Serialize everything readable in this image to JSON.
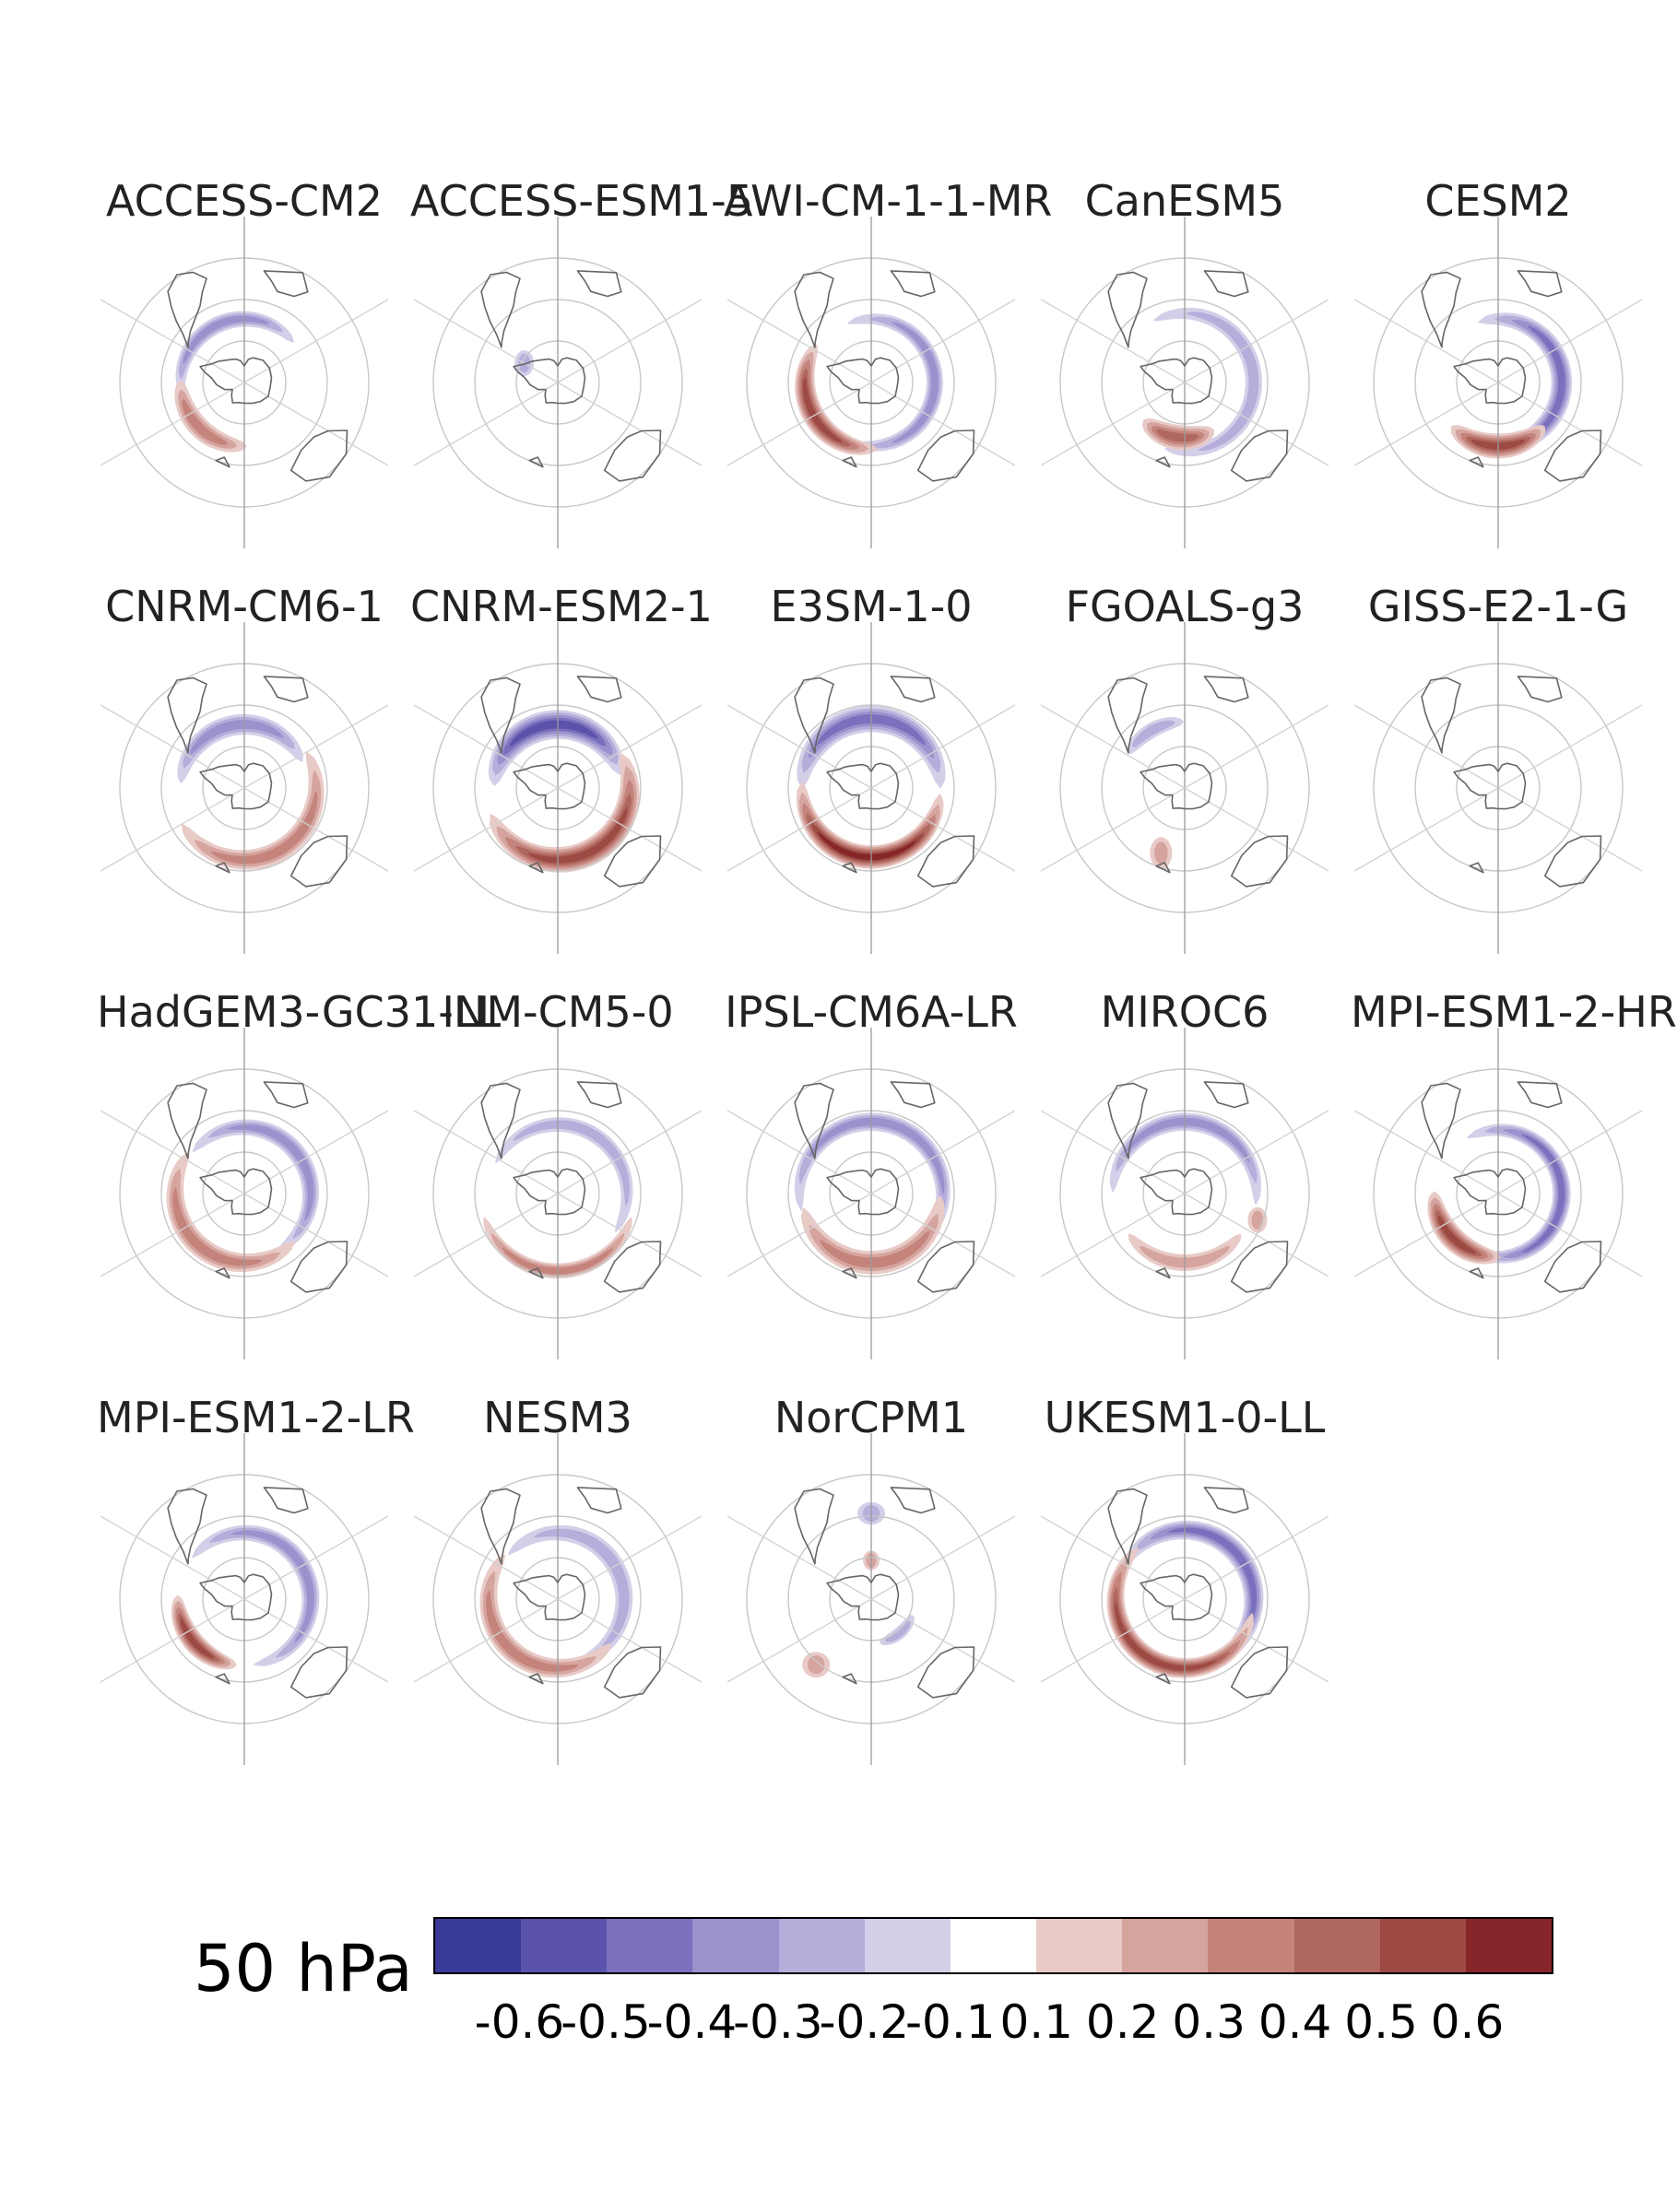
{
  "chart_data": {
    "type": "heatmap",
    "subtype": "south-polar-stereographic-map-panels",
    "level_label": "50 hPa",
    "colorbar": {
      "ticks": [
        "-0.6",
        "-0.5",
        "-0.4",
        "-0.3",
        "-0.2",
        "-0.1",
        "0.1",
        "0.2",
        "0.3",
        "0.4",
        "0.5",
        "0.6"
      ],
      "colors": [
        "#3a3a99",
        "#5b53ab",
        "#7a70bd",
        "#9a91cd",
        "#b6addb",
        "#d4cfe8",
        "#ffffff",
        "#e8cac6",
        "#d6a49e",
        "#c4847c",
        "#b0675f",
        "#9c4a43",
        "#87262a"
      ]
    },
    "panels": [
      {
        "title": "ACCESS-CM2",
        "blobs": [
          {
            "sign": -1,
            "amp": 0.3,
            "lon": 205,
            "rad": 0.46,
            "len": 0.42,
            "wid": 0.11,
            "curv": 0.95
          },
          {
            "sign": 1,
            "amp": 0.3,
            "lon": 315,
            "rad": 0.46,
            "len": 0.26,
            "wid": 0.14,
            "curv": 0.4
          }
        ]
      },
      {
        "title": "ACCESS-ESM1-5",
        "blobs": [
          {
            "sign": -1,
            "amp": 0.2,
            "lon": 240,
            "rad": 0.28,
            "len": 0.07,
            "wid": 0.06,
            "curv": 0
          }
        ]
      },
      {
        "title": "AWI-CM-1-1-MR",
        "blobs": [
          {
            "sign": -1,
            "amp": 0.3,
            "lon": 90,
            "rad": 0.46,
            "len": 0.62,
            "wid": 0.11,
            "curv": 0.9
          },
          {
            "sign": 1,
            "amp": 0.5,
            "lon": 300,
            "rad": 0.48,
            "len": 0.36,
            "wid": 0.15,
            "curv": 0.45
          }
        ]
      },
      {
        "title": "CanESM5",
        "blobs": [
          {
            "sign": -1,
            "amp": 0.2,
            "lon": 95,
            "rad": 0.5,
            "len": 0.62,
            "wid": 0.11,
            "curv": 0.9
          },
          {
            "sign": 1,
            "amp": 0.4,
            "lon": 352,
            "rad": 0.4,
            "len": 0.22,
            "wid": 0.17,
            "curv": 0.3
          }
        ]
      },
      {
        "title": "CESM2",
        "blobs": [
          {
            "sign": -1,
            "amp": 0.4,
            "lon": 90,
            "rad": 0.46,
            "len": 0.6,
            "wid": 0.14,
            "curv": 0.9
          },
          {
            "sign": 1,
            "amp": 0.5,
            "lon": 0,
            "rad": 0.46,
            "len": 0.26,
            "wid": 0.17,
            "curv": 0.3
          }
        ]
      },
      {
        "title": "CNRM-CM6-1",
        "blobs": [
          {
            "sign": -1,
            "amp": 0.3,
            "lon": 190,
            "rad": 0.46,
            "len": 0.42,
            "wid": 0.14,
            "curv": 0.9
          },
          {
            "sign": 1,
            "amp": 0.3,
            "lon": 30,
            "rad": 0.52,
            "len": 0.5,
            "wid": 0.14,
            "curv": 0.9
          }
        ]
      },
      {
        "title": "CNRM-ESM2-1",
        "blobs": [
          {
            "sign": -1,
            "amp": 0.5,
            "lon": 185,
            "rad": 0.46,
            "len": 0.46,
            "wid": 0.2,
            "curv": 0.8
          },
          {
            "sign": 1,
            "amp": 0.5,
            "lon": 25,
            "rad": 0.52,
            "len": 0.52,
            "wid": 0.18,
            "curv": 0.9
          }
        ]
      },
      {
        "title": "E3SM-1-0",
        "blobs": [
          {
            "sign": -1,
            "amp": 0.4,
            "lon": 180,
            "rad": 0.5,
            "len": 0.5,
            "wid": 0.18,
            "curv": 0.8
          },
          {
            "sign": 1,
            "amp": 0.6,
            "lon": 355,
            "rad": 0.5,
            "len": 0.5,
            "wid": 0.16,
            "curv": 0.8
          }
        ]
      },
      {
        "title": "FGOALS-g3",
        "blobs": [
          {
            "sign": -1,
            "amp": 0.2,
            "lon": 210,
            "rad": 0.48,
            "len": 0.16,
            "wid": 0.1,
            "curv": 0.5
          },
          {
            "sign": 1,
            "amp": 0.2,
            "lon": 340,
            "rad": 0.5,
            "len": 0.08,
            "wid": 0.08,
            "curv": 0
          }
        ]
      },
      {
        "title": "GISS-E2-1-G",
        "blobs": []
      },
      {
        "title": "HadGEM3-GC31-LL",
        "blobs": [
          {
            "sign": -1,
            "amp": 0.3,
            "lon": 130,
            "rad": 0.48,
            "len": 0.56,
            "wid": 0.12,
            "curv": 0.9
          },
          {
            "sign": 1,
            "amp": 0.3,
            "lon": 320,
            "rad": 0.5,
            "len": 0.48,
            "wid": 0.14,
            "curv": 0.9
          }
        ]
      },
      {
        "title": "INM-CM5-0",
        "blobs": [
          {
            "sign": -1,
            "amp": 0.2,
            "lon": 150,
            "rad": 0.5,
            "len": 0.52,
            "wid": 0.1,
            "curv": 0.9
          },
          {
            "sign": 1,
            "amp": 0.3,
            "lon": 0,
            "rad": 0.56,
            "len": 0.4,
            "wid": 0.1,
            "curv": 0.9
          }
        ]
      },
      {
        "title": "IPSL-CM6A-LR",
        "blobs": [
          {
            "sign": -1,
            "amp": 0.3,
            "lon": 165,
            "rad": 0.52,
            "len": 0.66,
            "wid": 0.12,
            "curv": 0.9
          },
          {
            "sign": 1,
            "amp": 0.3,
            "lon": 5,
            "rad": 0.5,
            "len": 0.46,
            "wid": 0.16,
            "curv": 0.9
          }
        ]
      },
      {
        "title": "MIROC6",
        "blobs": [
          {
            "sign": -1,
            "amp": 0.3,
            "lon": 175,
            "rad": 0.52,
            "len": 0.52,
            "wid": 0.12,
            "curv": 0.9
          },
          {
            "sign": 1,
            "amp": 0.2,
            "lon": 0,
            "rad": 0.5,
            "len": 0.3,
            "wid": 0.11,
            "curv": 0.7
          },
          {
            "sign": 1,
            "amp": 0.2,
            "lon": 70,
            "rad": 0.56,
            "len": 0.07,
            "wid": 0.06,
            "curv": 0
          }
        ]
      },
      {
        "title": "MPI-ESM1-2-HR",
        "blobs": [
          {
            "sign": -1,
            "amp": 0.4,
            "lon": 90,
            "rad": 0.46,
            "len": 0.66,
            "wid": 0.12,
            "curv": 0.9
          },
          {
            "sign": 1,
            "amp": 0.5,
            "lon": 315,
            "rad": 0.46,
            "len": 0.26,
            "wid": 0.16,
            "curv": 0.4
          }
        ]
      },
      {
        "title": "MPI-ESM1-2-LR",
        "blobs": [
          {
            "sign": -1,
            "amp": 0.3,
            "lon": 120,
            "rad": 0.48,
            "len": 0.62,
            "wid": 0.12,
            "curv": 0.9
          },
          {
            "sign": 1,
            "amp": 0.5,
            "lon": 310,
            "rad": 0.48,
            "len": 0.24,
            "wid": 0.14,
            "curv": 0.3
          }
        ]
      },
      {
        "title": "NESM3",
        "blobs": [
          {
            "sign": -1,
            "amp": 0.2,
            "lon": 120,
            "rad": 0.48,
            "len": 0.6,
            "wid": 0.12,
            "curv": 0.9
          },
          {
            "sign": 1,
            "amp": 0.3,
            "lon": 320,
            "rad": 0.5,
            "len": 0.5,
            "wid": 0.14,
            "curv": 0.9
          }
        ]
      },
      {
        "title": "NorCPM1",
        "blobs": [
          {
            "sign": -1,
            "amp": 0.2,
            "lon": 180,
            "rad": 0.62,
            "len": 0.1,
            "wid": 0.05,
            "curv": 0
          },
          {
            "sign": 1,
            "amp": 0.2,
            "lon": 180,
            "rad": 0.28,
            "len": 0.06,
            "wid": 0.04,
            "curv": 0
          },
          {
            "sign": -1,
            "amp": 0.2,
            "lon": 40,
            "rad": 0.32,
            "len": 0.16,
            "wid": 0.08,
            "curv": 0.4
          },
          {
            "sign": 1,
            "amp": 0.2,
            "lon": 320,
            "rad": 0.62,
            "len": 0.1,
            "wid": 0.06,
            "curv": 0
          }
        ]
      },
      {
        "title": "UKESM1-0-LL",
        "blobs": [
          {
            "sign": -1,
            "amp": 0.4,
            "lon": 130,
            "rad": 0.5,
            "len": 0.62,
            "wid": 0.14,
            "curv": 0.9
          },
          {
            "sign": 1,
            "amp": 0.5,
            "lon": 330,
            "rad": 0.5,
            "len": 0.6,
            "wid": 0.14,
            "curv": 0.9
          }
        ]
      }
    ]
  }
}
